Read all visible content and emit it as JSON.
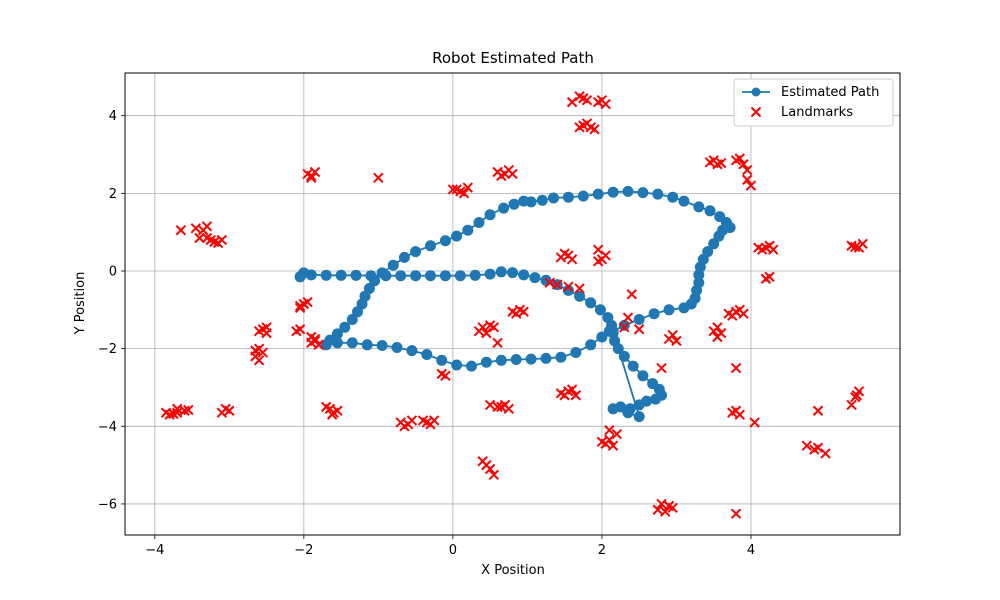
{
  "chart_data": {
    "type": "scatter",
    "title": "Robot Estimated Path",
    "xlabel": "X Position",
    "ylabel": "Y Position",
    "xlim": [
      -4.4,
      6.0
    ],
    "ylim": [
      -6.8,
      5.1
    ],
    "x_ticks": [
      -4,
      -2,
      0,
      2,
      4
    ],
    "y_ticks": [
      -6,
      -4,
      -2,
      0,
      2,
      4
    ],
    "x_tick_labels": [
      "−4",
      "−2",
      "0",
      "2",
      "4"
    ],
    "y_tick_labels": [
      "−6",
      "−4",
      "−2",
      "0",
      "2",
      "4"
    ],
    "grid": true,
    "legend": {
      "location": "upper right",
      "entries": [
        "Estimated Path",
        "Landmarks"
      ]
    },
    "colors": {
      "path": "#1f77b4",
      "landmarks": "#ff0000"
    },
    "series": [
      {
        "name": "Estimated Path",
        "style": "line-circle-markers",
        "points": [
          [
            -2.05,
            -0.15
          ],
          [
            -2.0,
            -0.05
          ],
          [
            -1.9,
            -0.1
          ],
          [
            -1.7,
            -0.11
          ],
          [
            -1.5,
            -0.11
          ],
          [
            -1.3,
            -0.11
          ],
          [
            -1.1,
            -0.12
          ],
          [
            -0.9,
            -0.12
          ],
          [
            -0.7,
            -0.12
          ],
          [
            -0.5,
            -0.12
          ],
          [
            -0.3,
            -0.12
          ],
          [
            -0.1,
            -0.12
          ],
          [
            0.1,
            -0.12
          ],
          [
            0.3,
            -0.11
          ],
          [
            0.5,
            -0.08
          ],
          [
            0.65,
            -0.02
          ],
          [
            0.8,
            -0.04
          ],
          [
            0.95,
            -0.1
          ],
          [
            1.1,
            -0.17
          ],
          [
            1.25,
            -0.24
          ],
          [
            1.4,
            -0.35
          ],
          [
            1.55,
            -0.5
          ],
          [
            1.7,
            -0.65
          ],
          [
            1.85,
            -0.82
          ],
          [
            1.98,
            -1.0
          ],
          [
            2.08,
            -1.2
          ],
          [
            2.13,
            -1.4
          ],
          [
            2.15,
            -1.6
          ],
          [
            2.17,
            -1.8
          ],
          [
            2.22,
            -2.0
          ],
          [
            2.3,
            -2.2
          ],
          [
            2.42,
            -2.45
          ],
          [
            2.55,
            -2.7
          ],
          [
            2.68,
            -2.9
          ],
          [
            2.77,
            -3.05
          ],
          [
            2.8,
            -3.2
          ],
          [
            2.72,
            -3.3
          ],
          [
            2.6,
            -3.35
          ],
          [
            2.5,
            -3.45
          ],
          [
            2.38,
            -3.55
          ],
          [
            2.25,
            -3.5
          ],
          [
            2.15,
            -3.55
          ],
          [
            2.35,
            -3.65
          ],
          [
            2.5,
            -3.75
          ],
          [
            2.15,
            -1.55
          ],
          [
            2.3,
            -1.4
          ],
          [
            2.5,
            -1.25
          ],
          [
            2.7,
            -1.1
          ],
          [
            2.9,
            -1.0
          ],
          [
            3.1,
            -0.95
          ],
          [
            3.2,
            -0.85
          ],
          [
            3.25,
            -0.7
          ],
          [
            3.27,
            -0.5
          ],
          [
            3.3,
            -0.3
          ],
          [
            3.3,
            -0.1
          ],
          [
            3.32,
            0.1
          ],
          [
            3.36,
            0.3
          ],
          [
            3.42,
            0.5
          ],
          [
            3.5,
            0.7
          ],
          [
            3.57,
            0.9
          ],
          [
            3.62,
            1.05
          ],
          [
            3.67,
            1.25
          ],
          [
            3.72,
            1.12
          ],
          [
            3.58,
            1.4
          ],
          [
            3.45,
            1.55
          ],
          [
            3.3,
            1.65
          ],
          [
            3.1,
            1.8
          ],
          [
            2.95,
            1.9
          ],
          [
            2.75,
            1.98
          ],
          [
            2.55,
            2.02
          ],
          [
            2.35,
            2.05
          ],
          [
            2.15,
            2.03
          ],
          [
            1.95,
            1.98
          ],
          [
            1.75,
            1.93
          ],
          [
            1.55,
            1.9
          ],
          [
            1.35,
            1.88
          ],
          [
            1.2,
            1.82
          ],
          [
            1.05,
            1.78
          ],
          [
            0.95,
            1.8
          ],
          [
            0.82,
            1.72
          ],
          [
            0.68,
            1.62
          ],
          [
            0.5,
            1.45
          ],
          [
            0.35,
            1.25
          ],
          [
            0.2,
            1.05
          ],
          [
            0.05,
            0.9
          ],
          [
            -0.1,
            0.78
          ],
          [
            -0.3,
            0.65
          ],
          [
            -0.5,
            0.5
          ],
          [
            -0.65,
            0.35
          ],
          [
            -0.8,
            0.15
          ],
          [
            -0.95,
            -0.05
          ],
          [
            -1.05,
            -0.25
          ],
          [
            -1.12,
            -0.45
          ],
          [
            -1.18,
            -0.65
          ],
          [
            -1.22,
            -0.85
          ],
          [
            -1.28,
            -1.05
          ],
          [
            -1.35,
            -1.25
          ],
          [
            -1.45,
            -1.45
          ],
          [
            -1.55,
            -1.62
          ],
          [
            -1.65,
            -1.78
          ],
          [
            -1.7,
            -1.9
          ],
          [
            -1.55,
            -1.85
          ],
          [
            -1.35,
            -1.85
          ],
          [
            -1.15,
            -1.9
          ],
          [
            -0.95,
            -1.92
          ],
          [
            -0.75,
            -1.97
          ],
          [
            -0.55,
            -2.05
          ],
          [
            -0.35,
            -2.15
          ],
          [
            -0.15,
            -2.3
          ],
          [
            0.05,
            -2.42
          ],
          [
            0.25,
            -2.45
          ],
          [
            0.45,
            -2.35
          ],
          [
            0.65,
            -2.3
          ],
          [
            0.85,
            -2.28
          ],
          [
            1.05,
            -2.27
          ],
          [
            1.25,
            -2.25
          ],
          [
            1.45,
            -2.22
          ],
          [
            1.65,
            -2.1
          ],
          [
            1.85,
            -1.9
          ],
          [
            2.0,
            -1.7
          ],
          [
            2.1,
            -1.55
          ]
        ]
      },
      {
        "name": "Landmarks",
        "style": "x-markers",
        "points": [
          [
            -3.7,
            -3.65
          ],
          [
            -3.8,
            -3.7
          ],
          [
            -3.6,
            -3.6
          ],
          [
            -3.7,
            -3.55
          ],
          [
            -3.85,
            -3.65
          ],
          [
            -3.55,
            -3.58
          ],
          [
            -3.75,
            -3.68
          ],
          [
            -3.05,
            -3.55
          ],
          [
            -3.1,
            -3.65
          ],
          [
            -3.0,
            -3.6
          ],
          [
            -2.6,
            -2.0
          ],
          [
            -2.65,
            -2.2
          ],
          [
            -2.6,
            -2.3
          ],
          [
            -2.55,
            -2.1
          ],
          [
            -2.65,
            -2.05
          ],
          [
            -2.55,
            -1.5
          ],
          [
            -2.5,
            -1.6
          ],
          [
            -2.6,
            -1.55
          ],
          [
            -2.5,
            -1.45
          ],
          [
            -2.1,
            -1.55
          ],
          [
            -2.05,
            -1.5
          ],
          [
            -2.05,
            -0.95
          ],
          [
            -2.0,
            -0.85
          ],
          [
            -1.95,
            -0.8
          ],
          [
            -2.05,
            -0.9
          ],
          [
            -1.9,
            -1.7
          ],
          [
            -1.85,
            -1.8
          ],
          [
            -1.8,
            -1.9
          ],
          [
            -1.85,
            -1.75
          ],
          [
            -1.9,
            -1.85
          ],
          [
            -1.7,
            -3.5
          ],
          [
            -1.65,
            -3.55
          ],
          [
            -1.6,
            -3.65
          ],
          [
            -1.55,
            -3.6
          ],
          [
            -1.62,
            -3.7
          ],
          [
            -1.95,
            2.5
          ],
          [
            -1.9,
            2.45
          ],
          [
            -1.85,
            2.55
          ],
          [
            -1.9,
            2.4
          ],
          [
            -1.0,
            2.4
          ],
          [
            -3.65,
            1.05
          ],
          [
            -3.45,
            1.1
          ],
          [
            -3.35,
            1.05
          ],
          [
            -3.3,
            1.15
          ],
          [
            -3.4,
            0.85
          ],
          [
            -3.3,
            0.85
          ],
          [
            -3.2,
            0.75
          ],
          [
            -3.1,
            0.8
          ],
          [
            -3.15,
            0.72
          ],
          [
            -3.25,
            0.8
          ],
          [
            -0.7,
            -3.9
          ],
          [
            -0.6,
            -3.95
          ],
          [
            -0.55,
            -3.85
          ],
          [
            -0.65,
            -4.0
          ],
          [
            -0.4,
            -3.85
          ],
          [
            -0.3,
            -3.95
          ],
          [
            -0.25,
            -3.85
          ],
          [
            -0.35,
            -3.9
          ],
          [
            -0.15,
            -2.65
          ],
          [
            -0.1,
            -2.7
          ],
          [
            0.05,
            2.1
          ],
          [
            0.15,
            2.0
          ],
          [
            0.2,
            2.15
          ],
          [
            0.1,
            2.05
          ],
          [
            0.0,
            2.1
          ],
          [
            0.6,
            2.55
          ],
          [
            0.7,
            2.5
          ],
          [
            0.75,
            2.6
          ],
          [
            0.65,
            2.45
          ],
          [
            0.8,
            2.5
          ],
          [
            0.35,
            -1.55
          ],
          [
            0.4,
            -1.45
          ],
          [
            0.5,
            -1.4
          ],
          [
            0.45,
            -1.6
          ],
          [
            0.55,
            -1.45
          ],
          [
            0.6,
            -1.85
          ],
          [
            0.8,
            -1.05
          ],
          [
            0.9,
            -1.0
          ],
          [
            0.85,
            -1.1
          ],
          [
            0.95,
            -1.05
          ],
          [
            0.5,
            -3.45
          ],
          [
            0.6,
            -3.5
          ],
          [
            0.7,
            -3.45
          ],
          [
            0.75,
            -3.55
          ],
          [
            0.65,
            -3.5
          ],
          [
            0.4,
            -4.9
          ],
          [
            0.5,
            -5.1
          ],
          [
            0.55,
            -5.25
          ],
          [
            0.45,
            -5.0
          ],
          [
            1.3,
            -0.3
          ],
          [
            1.4,
            -0.35
          ],
          [
            1.55,
            -0.4
          ],
          [
            1.7,
            -0.45
          ],
          [
            1.45,
            0.35
          ],
          [
            1.55,
            0.4
          ],
          [
            1.6,
            0.3
          ],
          [
            1.5,
            0.45
          ],
          [
            1.45,
            -3.15
          ],
          [
            1.55,
            -3.1
          ],
          [
            1.65,
            -3.2
          ],
          [
            1.6,
            -3.05
          ],
          [
            1.5,
            -3.2
          ],
          [
            1.6,
            4.35
          ],
          [
            1.75,
            4.45
          ],
          [
            1.8,
            4.4
          ],
          [
            1.7,
            4.5
          ],
          [
            1.75,
            3.75
          ],
          [
            1.85,
            3.7
          ],
          [
            1.8,
            3.8
          ],
          [
            1.9,
            3.65
          ],
          [
            1.7,
            3.7
          ],
          [
            1.95,
            4.35
          ],
          [
            2.05,
            4.3
          ],
          [
            2.0,
            4.4
          ],
          [
            1.95,
            0.55
          ],
          [
            2.0,
            0.3
          ],
          [
            2.05,
            0.4
          ],
          [
            1.95,
            0.25
          ],
          [
            2.0,
            -4.4
          ],
          [
            2.1,
            -4.35
          ],
          [
            2.15,
            -4.5
          ],
          [
            2.2,
            -4.2
          ],
          [
            2.1,
            -4.1
          ],
          [
            2.05,
            -4.45
          ],
          [
            2.3,
            -1.45
          ],
          [
            2.35,
            -1.2
          ],
          [
            2.4,
            -0.6
          ],
          [
            2.5,
            -1.5
          ],
          [
            2.8,
            -2.5
          ],
          [
            2.9,
            -1.75
          ],
          [
            2.95,
            -1.65
          ],
          [
            3.0,
            -1.8
          ],
          [
            2.75,
            -6.15
          ],
          [
            2.85,
            -6.2
          ],
          [
            2.9,
            -6.05
          ],
          [
            2.95,
            -6.1
          ],
          [
            2.8,
            -6.0
          ],
          [
            3.45,
            2.8
          ],
          [
            3.55,
            2.75
          ],
          [
            3.5,
            2.85
          ],
          [
            3.6,
            2.78
          ],
          [
            3.55,
            -1.45
          ],
          [
            3.6,
            -1.6
          ],
          [
            3.5,
            -1.55
          ],
          [
            3.55,
            -1.7
          ],
          [
            3.7,
            -1.1
          ],
          [
            3.8,
            -1.05
          ],
          [
            3.9,
            -1.1
          ],
          [
            3.85,
            -1.0
          ],
          [
            3.75,
            -1.15
          ],
          [
            3.75,
            -3.65
          ],
          [
            3.85,
            -3.7
          ],
          [
            3.8,
            -3.6
          ],
          [
            3.8,
            -2.5
          ],
          [
            3.8,
            -6.25
          ],
          [
            3.8,
            2.85
          ],
          [
            3.9,
            2.75
          ],
          [
            3.95,
            2.6
          ],
          [
            3.85,
            2.9
          ],
          [
            3.95,
            2.35
          ],
          [
            4.0,
            2.2
          ],
          [
            4.05,
            -3.9
          ],
          [
            4.1,
            0.6
          ],
          [
            4.2,
            0.6
          ],
          [
            4.3,
            0.55
          ],
          [
            4.25,
            0.65
          ],
          [
            4.15,
            0.55
          ],
          [
            4.2,
            -0.2
          ],
          [
            4.25,
            -0.15
          ],
          [
            4.75,
            -4.5
          ],
          [
            4.85,
            -4.6
          ],
          [
            4.9,
            -4.55
          ],
          [
            5.0,
            -4.7
          ],
          [
            4.9,
            -3.6
          ],
          [
            5.35,
            0.65
          ],
          [
            5.45,
            0.6
          ],
          [
            5.5,
            0.7
          ],
          [
            5.4,
            0.62
          ],
          [
            5.35,
            -3.45
          ],
          [
            5.4,
            -3.25
          ],
          [
            5.45,
            -3.1
          ],
          [
            5.42,
            -3.2
          ]
        ]
      }
    ]
  }
}
